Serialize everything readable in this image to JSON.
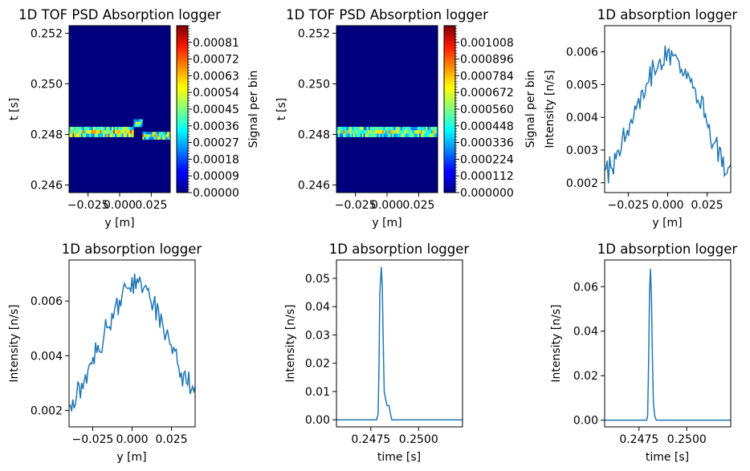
{
  "figure": {
    "background": "#ffffff",
    "line_color": "#1f77b4",
    "image_background": "#00007f",
    "colormap": "jet"
  },
  "chart_data": [
    {
      "type": "heatmap",
      "title": "1D TOF PSD Absorption logger",
      "xlabel": "y [m]",
      "ylabel": "t [s]",
      "xlim": [
        -0.04,
        0.04
      ],
      "ylim": [
        0.2457,
        0.2523
      ],
      "xticks": [
        -0.025,
        0.0,
        0.025
      ],
      "xtick_labels": [
        "−0.025",
        "0.000",
        "0.025"
      ],
      "yticks": [
        0.246,
        0.248,
        0.25,
        0.252
      ],
      "ytick_labels": [
        "0.246",
        "0.248",
        "0.250",
        "0.252"
      ],
      "colorbar": {
        "label": "Signal per bin",
        "min": 0.0,
        "max": 0.0009,
        "ticks": [
          0,
          9e-05,
          0.00018,
          0.00027,
          0.00036,
          0.00045,
          0.00054,
          0.00063,
          0.00072,
          0.00081
        ],
        "tick_labels": [
          "0.00000",
          "0.00009",
          "0.00018",
          "0.00027",
          "0.00036",
          "0.00045",
          "0.00054",
          "0.00063",
          "0.00072",
          "0.00081"
        ]
      },
      "bands": [
        {
          "t_range": [
            0.2479,
            0.2483
          ],
          "y_range": [
            -0.04,
            0.011
          ],
          "level": 0.00055
        },
        {
          "t_range": [
            0.2483,
            0.2486
          ],
          "y_range": [
            0.011,
            0.018
          ],
          "level": 0.0004
        },
        {
          "t_range": [
            0.2478,
            0.2481
          ],
          "y_range": [
            0.018,
            0.04
          ],
          "level": 0.0005
        }
      ]
    },
    {
      "type": "heatmap",
      "title": "1D TOF PSD Absorption logger",
      "xlabel": "y [m]",
      "ylabel": "t [s]",
      "xlim": [
        -0.04,
        0.04
      ],
      "ylim": [
        0.2457,
        0.2523
      ],
      "xticks": [
        -0.025,
        0.0,
        0.025
      ],
      "xtick_labels": [
        "−0.025",
        "0.000",
        "0.025"
      ],
      "yticks": [
        0.246,
        0.248,
        0.25,
        0.252
      ],
      "ytick_labels": [
        "0.246",
        "0.248",
        "0.250",
        "0.252"
      ],
      "colorbar": {
        "label": "Signal per bin",
        "min": 0.0,
        "max": 0.00112,
        "ticks": [
          0,
          0.000112,
          0.000224,
          0.000336,
          0.000448,
          0.00056,
          0.000672,
          0.000784,
          0.000896,
          0.001008
        ],
        "tick_labels": [
          "0.000000",
          "0.000112",
          "0.000224",
          "0.000336",
          "0.000448",
          "0.000560",
          "0.000672",
          "0.000784",
          "0.000896",
          "0.001008"
        ]
      },
      "bands": [
        {
          "t_range": [
            0.2479,
            0.2483
          ],
          "y_range": [
            -0.04,
            0.04
          ],
          "level": 0.0006
        }
      ]
    },
    {
      "type": "line",
      "title": "1D absorption logger",
      "xlabel": "y [m]",
      "ylabel": "Intensity [n/s]",
      "xlim": [
        -0.04,
        0.04
      ],
      "ylim": [
        0.0017,
        0.0068
      ],
      "xticks": [
        -0.025,
        0.0,
        0.025
      ],
      "xtick_labels": [
        "−0.025",
        "0.000",
        "0.025"
      ],
      "yticks": [
        0.002,
        0.003,
        0.004,
        0.005,
        0.006
      ],
      "ytick_labels": [
        "0.002",
        "0.003",
        "0.004",
        "0.005",
        "0.006"
      ],
      "x": [
        -0.04,
        -0.035,
        -0.03,
        -0.025,
        -0.02,
        -0.015,
        -0.01,
        -0.005,
        0.0,
        0.005,
        0.01,
        0.015,
        0.02,
        0.025,
        0.03,
        0.035,
        0.04
      ],
      "y": [
        0.0022,
        0.0026,
        0.0031,
        0.0036,
        0.0042,
        0.0048,
        0.0053,
        0.0056,
        0.0059,
        0.0058,
        0.0055,
        0.005,
        0.0045,
        0.0039,
        0.0032,
        0.0027,
        0.0023
      ],
      "noise": 0.0005
    },
    {
      "type": "line",
      "title": "1D absorption logger",
      "xlabel": "y [m]",
      "ylabel": "Intensity [n/s]",
      "xlim": [
        -0.04,
        0.04
      ],
      "ylim": [
        0.0014,
        0.0075
      ],
      "xticks": [
        -0.025,
        0.0,
        0.025
      ],
      "xtick_labels": [
        "−0.025",
        "0.000",
        "0.025"
      ],
      "yticks": [
        0.002,
        0.004,
        0.006
      ],
      "ytick_labels": [
        "0.002",
        "0.004",
        "0.006"
      ],
      "x": [
        -0.04,
        -0.035,
        -0.03,
        -0.025,
        -0.02,
        -0.015,
        -0.01,
        -0.005,
        0.0,
        0.005,
        0.01,
        0.015,
        0.02,
        0.025,
        0.03,
        0.035,
        0.04
      ],
      "y": [
        0.0019,
        0.0025,
        0.0031,
        0.0038,
        0.0045,
        0.0053,
        0.0059,
        0.0064,
        0.0067,
        0.0066,
        0.0062,
        0.0056,
        0.005,
        0.0043,
        0.0036,
        0.0031,
        0.0029
      ],
      "noise": 0.0006
    },
    {
      "type": "line",
      "title": "1D absorption logger",
      "xlabel": "time [s]",
      "ylabel": "Intensity [n/s]",
      "xlim": [
        0.2457,
        0.2523
      ],
      "ylim": [
        -0.0025,
        0.0565
      ],
      "xticks": [
        0.2475,
        0.25
      ],
      "xtick_labels": [
        "0.2475",
        "0.2500"
      ],
      "yticks": [
        0.0,
        0.01,
        0.02,
        0.03,
        0.04,
        0.05
      ],
      "ytick_labels": [
        "0.00",
        "0.01",
        "0.02",
        "0.03",
        "0.04",
        "0.05"
      ],
      "x": [
        0.2457,
        0.2478,
        0.24788,
        0.24793,
        0.24797,
        0.24805,
        0.2481,
        0.24815,
        0.2482,
        0.24828,
        0.24835,
        0.24845,
        0.24853,
        0.2486,
        0.2523
      ],
      "y": [
        0.0,
        0.0,
        0.002,
        0.02,
        0.045,
        0.054,
        0.047,
        0.027,
        0.01,
        0.007,
        0.005,
        0.005,
        0.002,
        0.0,
        0.0
      ]
    },
    {
      "type": "line",
      "title": "1D absorption logger",
      "xlabel": "time [s]",
      "ylabel": "Intensity [n/s]",
      "xlim": [
        0.2457,
        0.2523
      ],
      "ylim": [
        -0.003,
        0.072
      ],
      "xticks": [
        0.2475,
        0.25
      ],
      "xtick_labels": [
        "0.2475",
        "0.2500"
      ],
      "yticks": [
        0.0,
        0.02,
        0.04,
        0.06
      ],
      "ytick_labels": [
        "0.00",
        "0.02",
        "0.04",
        "0.06"
      ],
      "x": [
        0.2457,
        0.2479,
        0.24795,
        0.248,
        0.24805,
        0.2481,
        0.24815,
        0.2482,
        0.24825,
        0.24832,
        0.2484,
        0.2523
      ],
      "y": [
        0.0,
        0.0,
        0.002,
        0.025,
        0.058,
        0.068,
        0.055,
        0.028,
        0.008,
        0.002,
        0.0,
        0.0
      ]
    }
  ]
}
